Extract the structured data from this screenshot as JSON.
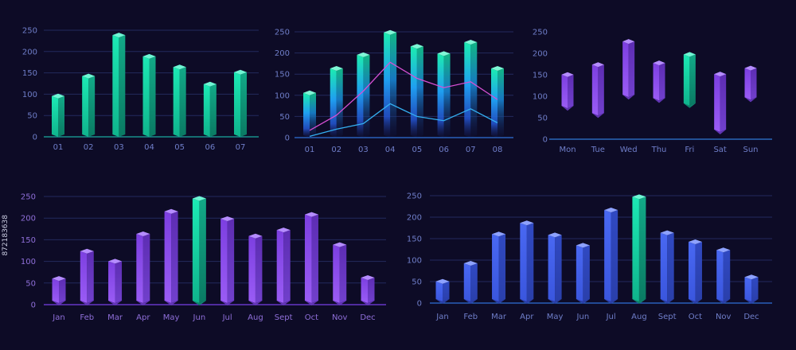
{
  "colors": {
    "background": "#0d0b26",
    "teal": "#19e6b0",
    "blue": "#3d63f0",
    "purple": "#8a48ea",
    "pink_line": "#d64fd3",
    "cyan_line": "#34b0f2"
  },
  "credit": "872183638",
  "chart_data": [
    {
      "type": "bar",
      "style": "3d-teal",
      "categories": [
        "01",
        "02",
        "03",
        "04",
        "05",
        "06",
        "07"
      ],
      "values": [
        90,
        137,
        233,
        183,
        158,
        118,
        146
      ],
      "yticks": [
        "0",
        "50",
        "100",
        "150",
        "200",
        "250"
      ],
      "ylim": [
        0,
        250
      ],
      "grid": true
    },
    {
      "type": "bar+line",
      "style": "gradient-teal-blue",
      "categories": [
        "01",
        "02",
        "03",
        "04",
        "05",
        "06",
        "07",
        "08"
      ],
      "values": [
        100,
        158,
        190,
        243,
        210,
        193,
        220,
        158
      ],
      "series": [
        {
          "color": "#d64fd3",
          "values": [
            17,
            53,
            110,
            178,
            140,
            118,
            132,
            90
          ]
        },
        {
          "color": "#34b0f2",
          "values": [
            3,
            20,
            33,
            80,
            50,
            40,
            68,
            35
          ]
        }
      ],
      "yticks": [
        "0",
        "50",
        "100",
        "150",
        "200",
        "250"
      ],
      "ylim": [
        0,
        250
      ],
      "grid": true
    },
    {
      "type": "floating-bar",
      "style": "3d-purple",
      "categories": [
        "Mon",
        "Tue",
        "Wed",
        "Thu",
        "Fri",
        "Sat",
        "Sun"
      ],
      "ranges": [
        [
          72,
          145
        ],
        [
          55,
          168
        ],
        [
          98,
          222
        ],
        [
          90,
          172
        ],
        [
          78,
          192
        ],
        [
          17,
          146
        ],
        [
          92,
          160
        ]
      ],
      "highlight_index": 4,
      "yticks": [
        "0",
        "50",
        "100",
        "150",
        "200",
        "250"
      ],
      "ylim": [
        0,
        250
      ],
      "grid": false
    },
    {
      "type": "bar",
      "style": "3d-purple",
      "categories": [
        "Jan",
        "Feb",
        "Mar",
        "Apr",
        "May",
        "Jun",
        "Jul",
        "Aug",
        "Sept",
        "Oct",
        "Nov",
        "Dec"
      ],
      "values": [
        55,
        118,
        95,
        158,
        210,
        240,
        193,
        153,
        167,
        203,
        133,
        57
      ],
      "highlight_index": 5,
      "yticks": [
        "0",
        "50",
        "100",
        "150",
        "200",
        "250"
      ],
      "ylim": [
        0,
        250
      ],
      "grid": true
    },
    {
      "type": "bar",
      "style": "3d-blue",
      "categories": [
        "Jan",
        "Feb",
        "Mar",
        "Apr",
        "May",
        "Jun",
        "Jul",
        "Aug",
        "Sept",
        "Oct",
        "Nov",
        "Dec"
      ],
      "values": [
        45,
        87,
        155,
        181,
        153,
        129,
        211,
        242,
        158,
        137,
        118,
        55
      ],
      "highlight_index": 7,
      "yticks": [
        "0",
        "50",
        "100",
        "150",
        "200",
        "250"
      ],
      "ylim": [
        0,
        250
      ],
      "grid": true
    }
  ]
}
